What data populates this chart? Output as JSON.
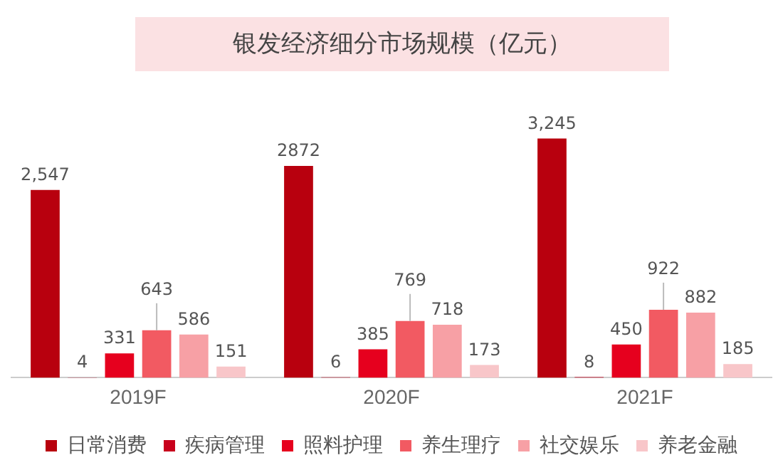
{
  "chart_data": {
    "type": "bar",
    "title": "银发经济细分市场规模（亿元）",
    "categories": [
      "2019F",
      "2020F",
      "2021F"
    ],
    "series": [
      {
        "name": "日常消费",
        "color": "#b8000e",
        "values": [
          2547,
          2872,
          3245
        ],
        "value_labels": [
          "2,547",
          "2872",
          "3,245"
        ]
      },
      {
        "name": "疾病管理",
        "color": "#c8001c",
        "values": [
          4,
          6,
          8
        ],
        "value_labels": [
          "4",
          "6",
          "8"
        ]
      },
      {
        "name": "照料护理",
        "color": "#e6001e",
        "values": [
          331,
          385,
          450
        ],
        "value_labels": [
          "331",
          "385",
          "450"
        ]
      },
      {
        "name": "养生理疗",
        "color": "#f25a62",
        "values": [
          643,
          769,
          922
        ],
        "value_labels": [
          "643",
          "769",
          "922"
        ]
      },
      {
        "name": "社交娱乐",
        "color": "#f7a0a5",
        "values": [
          586,
          718,
          882
        ],
        "value_labels": [
          "586",
          "718",
          "882"
        ]
      },
      {
        "name": "养老金融",
        "color": "#f8c6c9",
        "values": [
          151,
          173,
          185
        ],
        "value_labels": [
          "151",
          "173",
          "185"
        ]
      }
    ],
    "legend": "bottom",
    "grid": false
  }
}
